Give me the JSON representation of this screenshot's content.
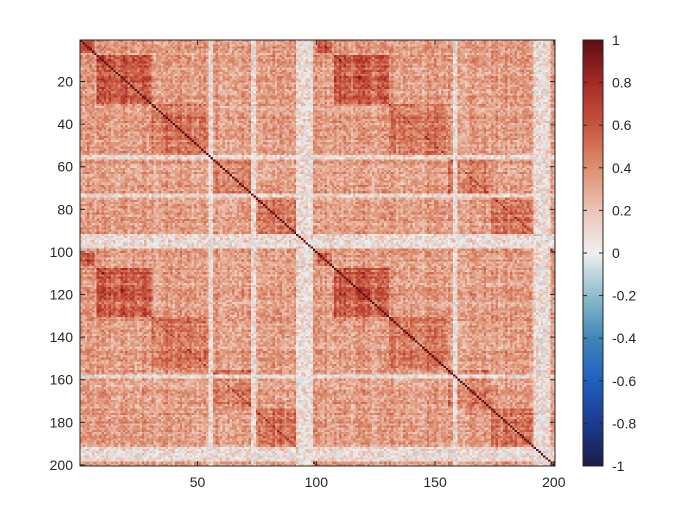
{
  "chart_data": {
    "type": "heatmap",
    "title": "",
    "xlabel": "",
    "ylabel": "",
    "rows": 200,
    "cols": 200,
    "xlim": [
      0.5,
      200.5
    ],
    "ylim": [
      0.5,
      200.5
    ],
    "y_direction": "reversed",
    "x_ticks": [
      50,
      100,
      150,
      200
    ],
    "x_tick_labels": [
      "50",
      "100",
      "150",
      "200"
    ],
    "y_ticks": [
      20,
      40,
      60,
      80,
      100,
      120,
      140,
      160,
      180,
      200
    ],
    "y_tick_labels": [
      "20",
      "40",
      "60",
      "80",
      "100",
      "120",
      "140",
      "160",
      "180",
      "200"
    ],
    "colorbar": {
      "limits": [
        -1,
        1
      ],
      "ticks": [
        1,
        0.8,
        0.6,
        0.4,
        0.2,
        0,
        -0.2,
        -0.4,
        -0.6,
        -0.8,
        -1
      ],
      "tick_labels": [
        "1",
        "0.8",
        "0.6",
        "0.4",
        "0.2",
        "0",
        "-0.2",
        "-0.4",
        "-0.6",
        "-0.8",
        "-1"
      ],
      "colormap": [
        [
          -1.0,
          "#1a1c48"
        ],
        [
          -0.8,
          "#1b3a8f"
        ],
        [
          -0.6,
          "#1f5fbf"
        ],
        [
          -0.4,
          "#3f86b8"
        ],
        [
          -0.2,
          "#8fbccc"
        ],
        [
          0.0,
          "#efefef"
        ],
        [
          0.2,
          "#ecc4b6"
        ],
        [
          0.4,
          "#dd8f6f"
        ],
        [
          0.6,
          "#c8543f"
        ],
        [
          0.8,
          "#a52a24"
        ],
        [
          1.0,
          "#5c0e12"
        ]
      ]
    },
    "structure": {
      "symmetric": true,
      "diagonal_value": 1,
      "period": 100,
      "high_correlation_blocks": [
        [
          1,
          6
        ],
        [
          8,
          30
        ],
        [
          30,
          55
        ],
        [
          103,
          108
        ],
        [
          110,
          130
        ],
        [
          130,
          155
        ]
      ],
      "low_correlation_stripes": [
        [
          55,
          56
        ],
        [
          73,
          74
        ],
        [
          92,
          98
        ],
        [
          158,
          159
        ],
        [
          192,
          198
        ]
      ],
      "typical_value_range": [
        0.2,
        0.8
      ]
    }
  }
}
